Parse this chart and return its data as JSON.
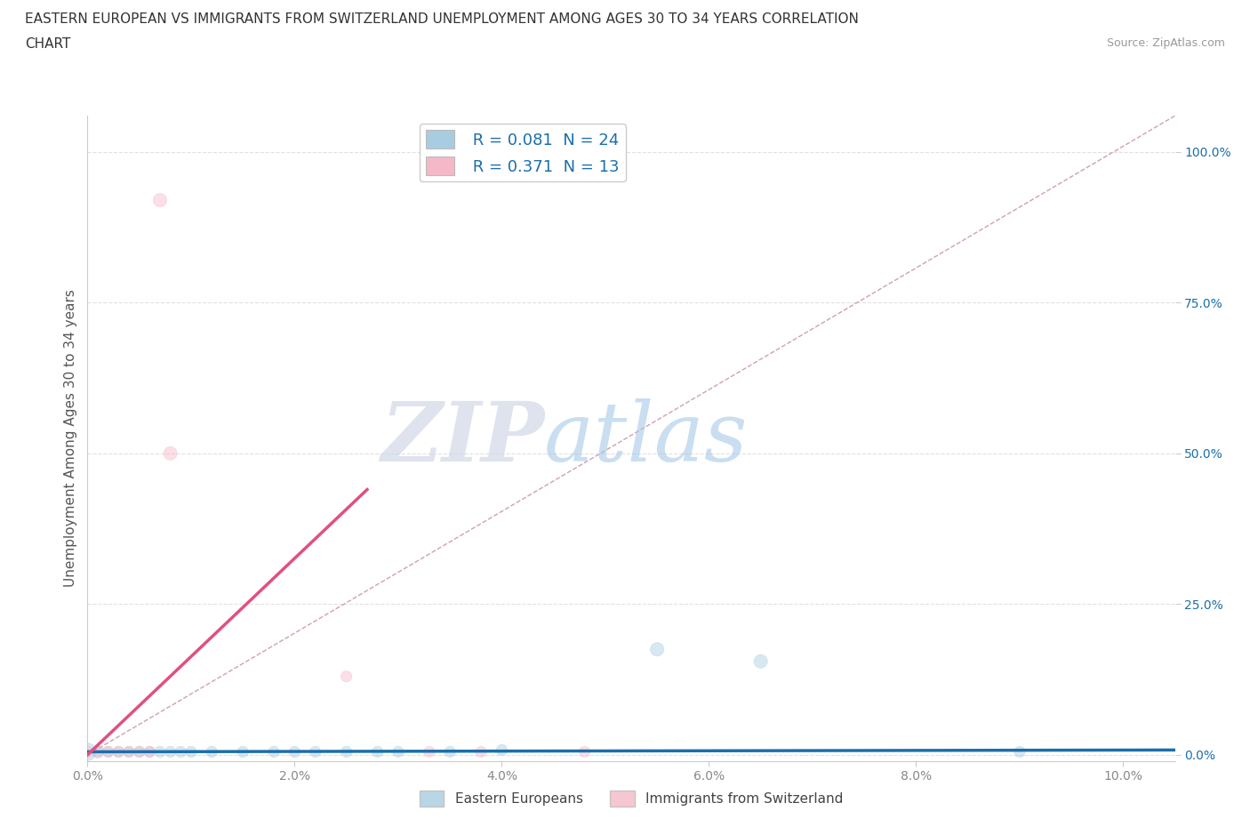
{
  "title_line1": "EASTERN EUROPEAN VS IMMIGRANTS FROM SWITZERLAND UNEMPLOYMENT AMONG AGES 30 TO 34 YEARS CORRELATION",
  "title_line2": "CHART",
  "source_text": "Source: ZipAtlas.com",
  "ylabel": "Unemployment Among Ages 30 to 34 years",
  "xlabel_ticks": [
    "0.0%",
    "2.0%",
    "4.0%",
    "6.0%",
    "8.0%",
    "10.0%"
  ],
  "ylabel_ticks": [
    "0.0%",
    "25.0%",
    "50.0%",
    "75.0%",
    "100.0%"
  ],
  "xlim": [
    0.0,
    0.105
  ],
  "ylim": [
    -0.01,
    1.06
  ],
  "legend_r1": "R = 0.081  N = 24",
  "legend_r2": "R = 0.371  N = 13",
  "watermark_zip": "ZIP",
  "watermark_atlas": "atlas",
  "blue_scatter_x": [
    0.0,
    0.001,
    0.002,
    0.003,
    0.004,
    0.005,
    0.006,
    0.007,
    0.008,
    0.009,
    0.01,
    0.012,
    0.015,
    0.018,
    0.02,
    0.022,
    0.025,
    0.028,
    0.03,
    0.035,
    0.04,
    0.055,
    0.065,
    0.09
  ],
  "blue_scatter_y": [
    0.005,
    0.005,
    0.005,
    0.005,
    0.005,
    0.005,
    0.005,
    0.005,
    0.005,
    0.005,
    0.005,
    0.005,
    0.005,
    0.005,
    0.005,
    0.005,
    0.005,
    0.005,
    0.005,
    0.005,
    0.008,
    0.175,
    0.155,
    0.005
  ],
  "pink_scatter_x": [
    0.0,
    0.001,
    0.002,
    0.003,
    0.004,
    0.005,
    0.006,
    0.007,
    0.008,
    0.025,
    0.033,
    0.038,
    0.048
  ],
  "pink_scatter_y": [
    0.005,
    0.005,
    0.005,
    0.005,
    0.005,
    0.005,
    0.005,
    0.92,
    0.5,
    0.13,
    0.005,
    0.005,
    0.005
  ],
  "blue_line_x": [
    0.0,
    0.105
  ],
  "blue_line_y": [
    0.005,
    0.008
  ],
  "pink_line_x": [
    0.0,
    0.027
  ],
  "pink_line_y": [
    0.0,
    0.44
  ],
  "diag_line_x": [
    0.0,
    0.105
  ],
  "diag_line_y": [
    0.0,
    1.06
  ],
  "blue_scatter_sizes": [
    200,
    100,
    80,
    80,
    80,
    80,
    80,
    80,
    80,
    80,
    80,
    80,
    80,
    80,
    80,
    80,
    80,
    80,
    80,
    80,
    80,
    120,
    120,
    80
  ],
  "pink_scatter_sizes": [
    80,
    80,
    80,
    80,
    80,
    80,
    80,
    120,
    120,
    80,
    80,
    80,
    80
  ],
  "scatter_alpha": 0.45,
  "blue_color": "#a8cce0",
  "pink_color": "#f5b8c8",
  "blue_line_color": "#1a6fab",
  "pink_line_color": "#e05080",
  "diag_color": "#d0a0b0",
  "background_color": "#ffffff",
  "grid_color": "#e0e0e0",
  "title_color": "#333333",
  "label_color": "#555555",
  "axis_label_fontsize": 11,
  "title_fontsize": 11,
  "tick_label_color_x": "#888888",
  "tick_label_color_y": "#1a6fab",
  "legend_label_color": "#1a6fab"
}
